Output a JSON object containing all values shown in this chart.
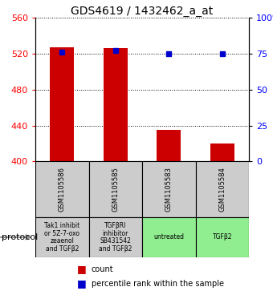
{
  "title": "GDS4619 / 1432462_a_at",
  "samples": [
    "GSM1105586",
    "GSM1105585",
    "GSM1105583",
    "GSM1105584"
  ],
  "bar_values": [
    527,
    526,
    435,
    420
  ],
  "percentile_values": [
    76,
    77,
    75,
    75
  ],
  "ylim_left": [
    400,
    560
  ],
  "ylim_right": [
    0,
    100
  ],
  "yticks_left": [
    400,
    440,
    480,
    520,
    560
  ],
  "yticks_right": [
    0,
    25,
    50,
    75,
    100
  ],
  "bar_color": "#cc0000",
  "dot_color": "#0000cc",
  "bar_bottom": 400,
  "protocols": [
    "Tak1 inhibit\nor 5Z-7-oxo\nzeaenol\nand TGFβ2",
    "TGFβRI\ninhibitor\nSB431542\nand TGFβ2",
    "untreated",
    "TGFβ2"
  ],
  "protocol_colors": [
    "#cccccc",
    "#cccccc",
    "#90ee90",
    "#90ee90"
  ],
  "protocol_label": "protocol",
  "legend_count_color": "#cc0000",
  "legend_dot_color": "#0000cc",
  "grid_color": "#000000",
  "title_fontsize": 10,
  "axis_label_fontsize": 8,
  "sample_fontsize": 6,
  "protocol_fontsize": 5.5,
  "legend_fontsize": 7
}
